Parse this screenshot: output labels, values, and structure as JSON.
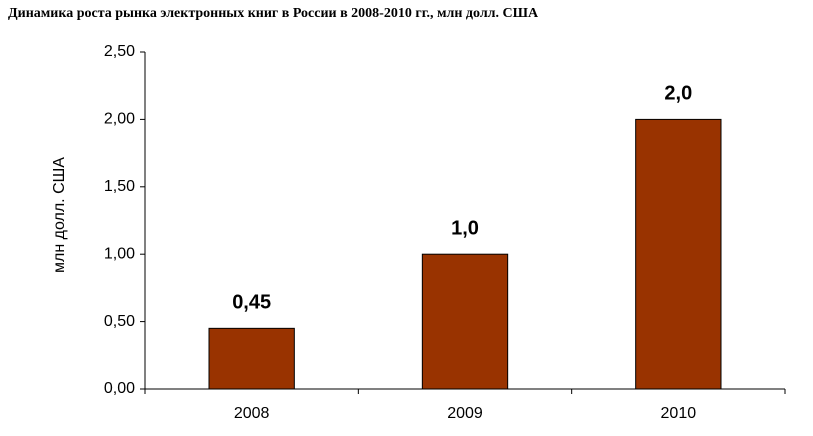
{
  "chart_data": {
    "type": "bar",
    "title": "Динамика роста рынка электронных книг в России в 2008-2010 гг., млн долл. США",
    "y_label": "млн долл. США",
    "categories": [
      "2008",
      "2009",
      "2010"
    ],
    "values": [
      0.45,
      1.0,
      2.0
    ],
    "value_labels": [
      "0,45",
      "1,0",
      "2,0"
    ],
    "color": "#993300",
    "ylim": [
      0,
      2.5
    ],
    "yticks": [
      {
        "value": 0,
        "label": "0,00"
      },
      {
        "value": 0.5,
        "label": "0,50"
      },
      {
        "value": 1,
        "label": "1,00"
      },
      {
        "value": 1.5,
        "label": "1,50"
      },
      {
        "value": 2,
        "label": "2,00"
      },
      {
        "value": 2.5,
        "label": "2,50"
      }
    ],
    "grid": false
  }
}
